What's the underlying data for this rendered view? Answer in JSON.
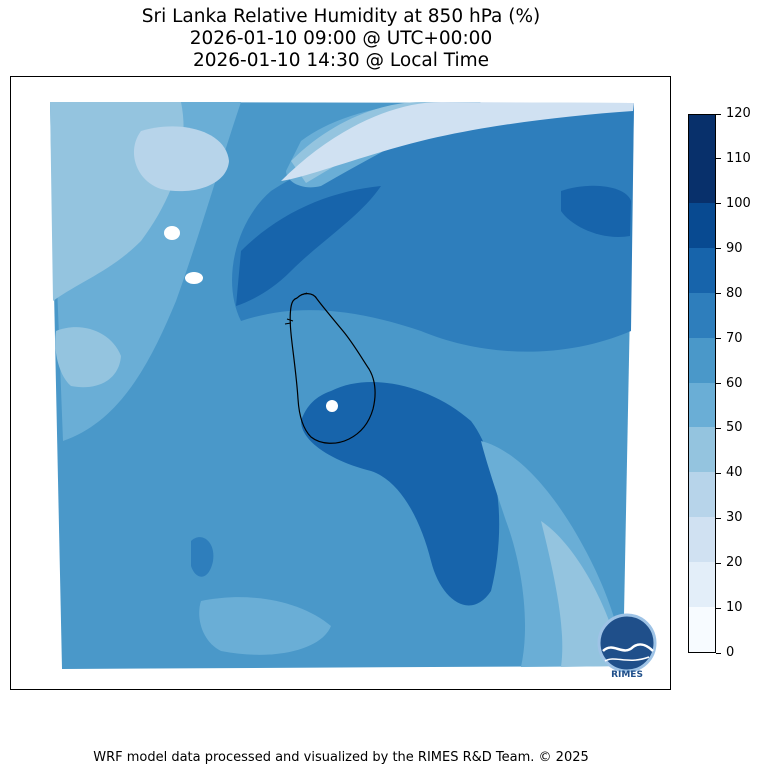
{
  "title": {
    "line1": "Sri Lanka Relative Humidity at 850 hPa (%)",
    "line2": "2026-01-10 09:00 @ UTC+00:00",
    "line3": "2026-01-10 14:30 @ Local Time"
  },
  "colorbar": {
    "ticks": [
      "0",
      "10",
      "20",
      "30",
      "40",
      "50",
      "60",
      "70",
      "80",
      "90",
      "100",
      "110",
      "120"
    ],
    "colors": [
      "#f7fbff",
      "#e3eef9",
      "#d0e1f2",
      "#b7d4ea",
      "#94c4df",
      "#6aaed6",
      "#4a98c9",
      "#2e7ebc",
      "#1764ab",
      "#084a91",
      "#08306b",
      "#08306b"
    ]
  },
  "field_colors": {
    "background": "#4a98c9",
    "moist": "#2e7ebc",
    "very_moist": "#1764ab",
    "dry": "#6aaed6",
    "drier": "#94c4df",
    "driest": "#b7d4ea",
    "palest": "#d0e1f2",
    "coast": "#000000"
  },
  "logo": {
    "text": "RIMES",
    "color": "#1f4f8a"
  },
  "footer": "WRF model data processed and visualized by the RIMES R&D Team. © 2025"
}
